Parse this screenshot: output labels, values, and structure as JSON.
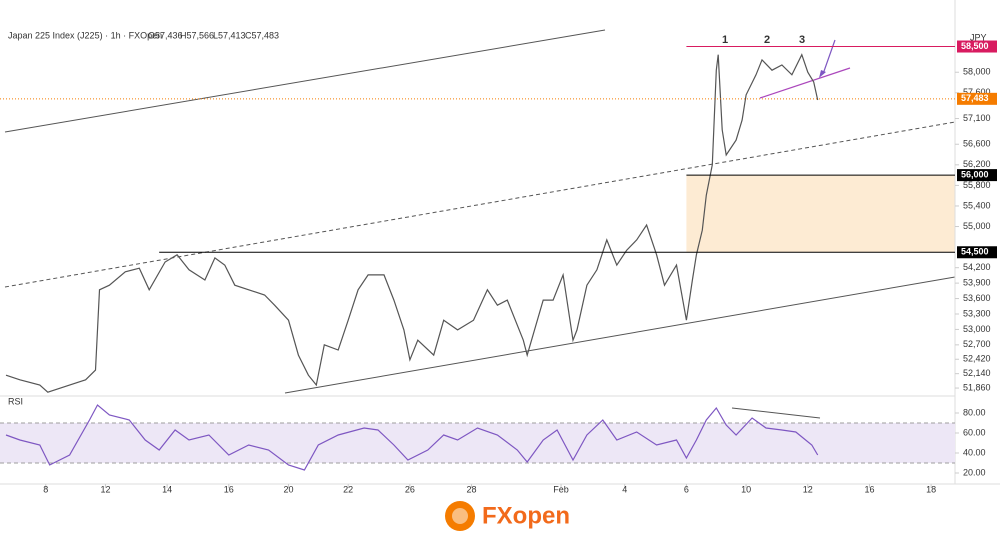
{
  "chart_data": [
    {
      "type": "line",
      "title": "Japan 225 Index (J225) · 1h · FXOpen",
      "ohlc_labels": [
        "O57,436",
        "H57,566",
        "L57,413",
        "C57,483"
      ],
      "y_axis_label": "JPY",
      "color": "#555555",
      "wave_labels": [
        "1",
        "2",
        "3"
      ],
      "x": [
        3,
        10,
        20,
        24,
        43,
        48,
        50,
        55,
        63,
        70,
        75,
        83,
        89,
        95,
        103,
        108,
        113,
        118,
        125,
        133,
        138,
        145,
        150,
        155,
        159,
        163,
        170,
        175,
        180,
        185,
        193,
        198,
        203,
        206,
        210,
        218,
        223,
        230,
        238,
        245,
        250,
        255,
        263,
        265,
        273,
        278,
        283,
        288,
        290,
        295,
        300,
        305,
        310,
        315,
        320,
        325,
        330,
        334,
        340,
        345,
        348,
        350,
        353,
        355,
        358,
        360,
        361,
        363,
        365,
        370,
        373,
        375,
        380,
        383,
        388,
        393,
        398,
        403,
        406,
        409,
        411
      ],
      "values": [
        52110,
        52020,
        51920,
        51780,
        52020,
        52210,
        53770,
        53860,
        54120,
        54190,
        53770,
        54310,
        54450,
        54160,
        53960,
        54390,
        54250,
        53860,
        53770,
        53670,
        53470,
        53180,
        52500,
        52110,
        51920,
        52700,
        52600,
        53180,
        53770,
        54060,
        54060,
        53570,
        52990,
        52410,
        52790,
        52500,
        53180,
        52990,
        53180,
        53770,
        53470,
        53570,
        52790,
        52500,
        53570,
        53570,
        54060,
        52790,
        52990,
        53860,
        54160,
        54740,
        54250,
        54540,
        54740,
        55030,
        54450,
        53860,
        54250,
        53180,
        53960,
        54450,
        54930,
        55610,
        56200,
        58040,
        58340,
        56880,
        56390,
        56680,
        57070,
        57560,
        57950,
        58240,
        58040,
        58140,
        57950,
        58340,
        58000,
        57810,
        57460
      ],
      "xlim": [
        0,
        480
      ],
      "ylim": [
        51725,
        58860
      ],
      "xticks": [
        {
          "value": 23,
          "label": "8"
        },
        {
          "value": 53,
          "label": "12"
        },
        {
          "value": 84,
          "label": "14"
        },
        {
          "value": 115,
          "label": "16"
        },
        {
          "value": 145,
          "label": "20"
        },
        {
          "value": 175,
          "label": "22"
        },
        {
          "value": 206,
          "label": "26"
        },
        {
          "value": 237,
          "label": "28"
        },
        {
          "value": 282,
          "label": "Feb"
        },
        {
          "value": 314,
          "label": "4"
        },
        {
          "value": 345,
          "label": "6"
        },
        {
          "value": 375,
          "label": "10"
        },
        {
          "value": 406,
          "label": "12"
        },
        {
          "value": 437,
          "label": "16"
        },
        {
          "value": 468,
          "label": "18"
        }
      ],
      "yticks": [
        {
          "value": 58000,
          "label": "58,000"
        },
        {
          "value": 57600,
          "label": "57,600"
        },
        {
          "value": 57100,
          "label": "57,100"
        },
        {
          "value": 56600,
          "label": "56,600"
        },
        {
          "value": 56200,
          "label": "56,200"
        },
        {
          "value": 55800,
          "label": "55,800"
        },
        {
          "value": 55400,
          "label": "55,400"
        },
        {
          "value": 55000,
          "label": "55,000"
        },
        {
          "value": 54200,
          "label": "54,200"
        },
        {
          "value": 53900,
          "label": "53,900"
        },
        {
          "value": 53600,
          "label": "53,600"
        },
        {
          "value": 53300,
          "label": "53,300"
        },
        {
          "value": 53000,
          "label": "53,000"
        },
        {
          "value": 52700,
          "label": "52,700"
        },
        {
          "value": 52420,
          "label": "52,420"
        },
        {
          "value": 52140,
          "label": "52,140"
        },
        {
          "value": 51860,
          "label": "51,860"
        }
      ],
      "levels": [
        {
          "value": 58500,
          "label": "58,500",
          "color": "#d81b60",
          "from": 345,
          "style": "solid"
        },
        {
          "value": 57483,
          "label": "57,483",
          "color": "#f57c00",
          "from": 0,
          "style": "dotted"
        },
        {
          "value": 56000,
          "label": "56,000",
          "color": "#000000",
          "from": 345,
          "style": "solid"
        },
        {
          "value": 54500,
          "label": "54,500",
          "color": "#000000",
          "from": 80,
          "style": "solid"
        }
      ],
      "zone": {
        "from": 345,
        "low": 54500,
        "high": 56000,
        "color": "#fdebd3"
      }
    },
    {
      "type": "line",
      "title": "RSI",
      "color": "#7e57c2",
      "x": [
        3,
        10,
        20,
        25,
        35,
        45,
        49,
        55,
        65,
        73,
        80,
        88,
        95,
        105,
        115,
        125,
        135,
        145,
        153,
        160,
        170,
        183,
        190,
        198,
        205,
        215,
        223,
        230,
        240,
        250,
        260,
        265,
        273,
        280,
        288,
        295,
        303,
        310,
        320,
        330,
        340,
        345,
        350,
        355,
        360,
        365,
        370,
        378,
        385,
        393,
        400,
        408,
        411
      ],
      "values": [
        58,
        53,
        48,
        28,
        38,
        73,
        88,
        78,
        73,
        53,
        43,
        63,
        53,
        58,
        38,
        48,
        43,
        28,
        23,
        48,
        58,
        65,
        63,
        48,
        33,
        43,
        58,
        53,
        65,
        58,
        43,
        31,
        53,
        63,
        33,
        58,
        73,
        53,
        61,
        48,
        53,
        35,
        53,
        73,
        85,
        68,
        58,
        75,
        65,
        63,
        61,
        48,
        38
      ],
      "xlim": [
        0,
        480
      ],
      "ylim": [
        8,
        93
      ],
      "band": [
        30,
        70
      ],
      "yticks": [
        {
          "value": 80,
          "label": "80.00"
        },
        {
          "value": 60,
          "label": "60.00"
        },
        {
          "value": 40,
          "label": "40.00"
        },
        {
          "value": 20,
          "label": "20.00"
        }
      ]
    }
  ],
  "logo": "FXopen"
}
